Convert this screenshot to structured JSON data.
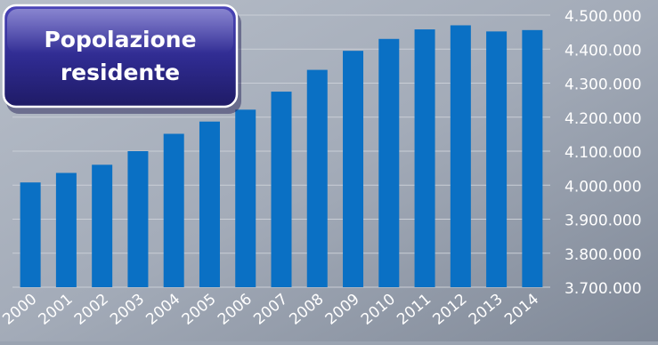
{
  "title_box": {
    "line1": "Popolazione",
    "line2": "residente"
  },
  "colors": {
    "bar": "#0a70c4",
    "grid": "#c9ced6",
    "title_box": "#2f2a8c",
    "tick_text": "#ffffff"
  },
  "chart_data": {
    "type": "bar",
    "title": "Popolazione residente",
    "xlabel": "",
    "ylabel": "",
    "y_axis_position": "right",
    "grid": true,
    "ylim": [
      3700000,
      4500000
    ],
    "yticks": [
      3700000,
      3800000,
      3900000,
      4000000,
      4100000,
      4200000,
      4300000,
      4400000,
      4500000
    ],
    "ytick_labels": [
      "3.700.000",
      "3.800.000",
      "3.900.000",
      "4.000.000",
      "4.100.000",
      "4.200.000",
      "4.300.000",
      "4.400.000",
      "4.500.000"
    ],
    "categories": [
      "2000",
      "2001",
      "2002",
      "2003",
      "2004",
      "2005",
      "2006",
      "2007",
      "2008",
      "2009",
      "2010",
      "2011",
      "2012",
      "2013",
      "2014"
    ],
    "values": [
      4008000,
      4036000,
      4060000,
      4100000,
      4151000,
      4187000,
      4222000,
      4275000,
      4339000,
      4395000,
      4430000,
      4458000,
      4470000,
      4452000,
      4456000
    ]
  }
}
